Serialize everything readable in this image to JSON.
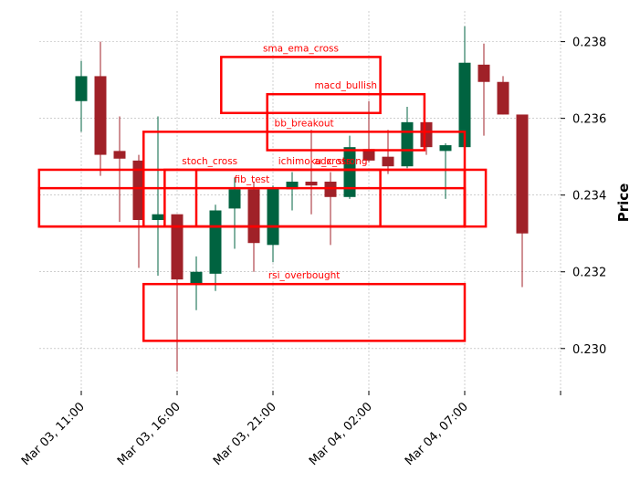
{
  "chart_data": {
    "type": "candlestick",
    "ylabel": "Price",
    "ylim": [
      0.2289,
      0.2388
    ],
    "yticks": [
      0.23,
      0.232,
      0.234,
      0.236,
      0.238
    ],
    "ytick_labels": [
      "0.230",
      "0.232",
      "0.234",
      "0.236",
      "0.238"
    ],
    "xticks": [
      {
        "idx": 0,
        "label": "Mar 03, 11:00"
      },
      {
        "idx": 5,
        "label": "Mar 03, 16:00"
      },
      {
        "idx": 10,
        "label": "Mar 03, 21:00"
      },
      {
        "idx": 15,
        "label": "Mar 04, 02:00"
      },
      {
        "idx": 20,
        "label": "Mar 04, 07:00"
      },
      {
        "idx": 25,
        "label": ""
      }
    ],
    "grid": true,
    "colors": {
      "up": "#006340",
      "down": "#a02128",
      "box": "#ff0000",
      "grid": "#b0b0b0"
    },
    "candles": [
      {
        "open": 0.23645,
        "high": 0.2375,
        "low": 0.23565,
        "close": 0.2371
      },
      {
        "open": 0.2371,
        "high": 0.238,
        "low": 0.2345,
        "close": 0.23505
      },
      {
        "open": 0.23515,
        "high": 0.23605,
        "low": 0.2333,
        "close": 0.23495
      },
      {
        "open": 0.2349,
        "high": 0.23505,
        "low": 0.2321,
        "close": 0.23335
      },
      {
        "open": 0.23335,
        "high": 0.23605,
        "low": 0.2319,
        "close": 0.2335
      },
      {
        "open": 0.2335,
        "high": 0.2335,
        "low": 0.2294,
        "close": 0.2318
      },
      {
        "open": 0.2317,
        "high": 0.2324,
        "low": 0.231,
        "close": 0.232
      },
      {
        "open": 0.23195,
        "high": 0.23375,
        "low": 0.2315,
        "close": 0.2336
      },
      {
        "open": 0.23365,
        "high": 0.23445,
        "low": 0.2326,
        "close": 0.23415
      },
      {
        "open": 0.23415,
        "high": 0.23435,
        "low": 0.232,
        "close": 0.23275
      },
      {
        "open": 0.2327,
        "high": 0.23425,
        "low": 0.23225,
        "close": 0.2342
      },
      {
        "open": 0.23415,
        "high": 0.2346,
        "low": 0.2336,
        "close": 0.23435
      },
      {
        "open": 0.23435,
        "high": 0.2357,
        "low": 0.2335,
        "close": 0.23425
      },
      {
        "open": 0.23435,
        "high": 0.2346,
        "low": 0.2327,
        "close": 0.23395
      },
      {
        "open": 0.23395,
        "high": 0.23555,
        "low": 0.2339,
        "close": 0.23525
      },
      {
        "open": 0.2352,
        "high": 0.23645,
        "low": 0.23485,
        "close": 0.2349
      },
      {
        "open": 0.235,
        "high": 0.2357,
        "low": 0.23455,
        "close": 0.23475
      },
      {
        "open": 0.23475,
        "high": 0.2363,
        "low": 0.2347,
        "close": 0.2359
      },
      {
        "open": 0.2359,
        "high": 0.2359,
        "low": 0.23505,
        "close": 0.23525
      },
      {
        "open": 0.23515,
        "high": 0.23535,
        "low": 0.2339,
        "close": 0.2353
      },
      {
        "open": 0.23525,
        "high": 0.2384,
        "low": 0.23505,
        "close": 0.23745
      },
      {
        "open": 0.2374,
        "high": 0.23795,
        "low": 0.23555,
        "close": 0.23695
      },
      {
        "open": 0.23695,
        "high": 0.2371,
        "low": 0.2361,
        "close": 0.2361
      },
      {
        "open": 0.2361,
        "high": 0.2361,
        "low": 0.2316,
        "close": 0.233
      }
    ],
    "annotations": [
      {
        "label": "sma_ema_cross",
        "x0": 7.3,
        "x1": 15.6,
        "y0": 0.23614,
        "y1": 0.2376
      },
      {
        "label": "macd_bullish",
        "x0": 9.7,
        "x1": 17.9,
        "y0": 0.23517,
        "y1": 0.23663
      },
      {
        "label": "bb_breakout",
        "x0": 3.25,
        "x1": 20.0,
        "y0": 0.23318,
        "y1": 0.23565
      },
      {
        "label": "stoch_cross",
        "x0": -2.2,
        "x1": 15.6,
        "y0": 0.23318,
        "y1": 0.23466
      },
      {
        "label": "ichimoku_cross",
        "x0": 4.35,
        "x1": 20.0,
        "y0": 0.23318,
        "y1": 0.23466
      },
      {
        "label": "adx_strong",
        "x0": 6.0,
        "x1": 21.1,
        "y0": 0.23318,
        "y1": 0.23466
      },
      {
        "label": "fib_test",
        "x0": -2.2,
        "x1": 20.0,
        "y0": 0.23318,
        "y1": 0.23418
      },
      {
        "label": "rsi_overbought",
        "x0": 3.25,
        "x1": 20.0,
        "y0": 0.2302,
        "y1": 0.23168
      }
    ]
  }
}
